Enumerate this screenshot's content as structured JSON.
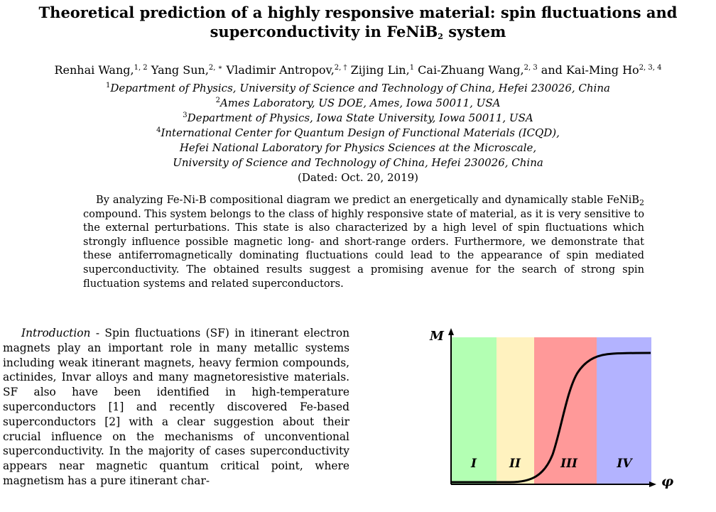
{
  "title": {
    "line1": "Theoretical prediction of a highly responsive material: spin fluctuations and",
    "line2_pre": "superconductivity in FeNiB",
    "line2_sub": "2",
    "line2_post": " system"
  },
  "authors": [
    {
      "name": "Renhai Wang,",
      "sup": "1, 2"
    },
    {
      "name": " Yang Sun,",
      "sup": "2, ∗"
    },
    {
      "name": " Vladimir Antropov,",
      "sup": "2, †"
    },
    {
      "name": " Zijing Lin,",
      "sup": "1"
    },
    {
      "name": " Cai-Zhuang Wang,",
      "sup": "2, 3"
    },
    {
      "name": " and Kai-Ming Ho",
      "sup": "2, 3, 4"
    }
  ],
  "affiliations": [
    {
      "sup": "1",
      "text": "Department of Physics, University of Science and Technology of China, Hefei 230026, China"
    },
    {
      "sup": "2",
      "text": "Ames Laboratory, US DOE, Ames, Iowa 50011, USA"
    },
    {
      "sup": "3",
      "text": "Department of Physics, Iowa State University, Iowa 50011, USA"
    },
    {
      "sup": "4",
      "text": "International Center for Quantum Design of Functional Materials (ICQD),"
    },
    {
      "sup": "",
      "text": "Hefei National Laboratory for Physics Sciences at the Microscale,"
    },
    {
      "sup": "",
      "text": "University of Science and Technology of China, Hefei 230026, China"
    }
  ],
  "dated": "(Dated: Oct. 20, 2019)",
  "abstract": {
    "pre": "By analyzing Fe-Ni-B compositional diagram we predict an energetically and dynamically stable FeNiB",
    "sub": "2",
    "post": " compound. This system belongs to the class of highly responsive state of material, as it is very sensitive to the external perturbations. This state is also characterized by a high level of spin fluctuations which strongly influence possible magnetic long- and short-range orders. Furthermore, we demonstrate that these antiferromagnetically dominating fluctuations could lead to the appearance of spin mediated superconductivity. The obtained results suggest a promising avenue for the search of strong spin fluctuation systems and related superconductors."
  },
  "intro": {
    "heading": "Introduction",
    "text": " - Spin fluctuations (SF) in itinerant electron magnets play an important role in many metallic systems including weak itinerant magnets, heavy fermion compounds, actinides, Invar alloys and many magnetoresistive materials. SF also have been identified in high-temperature superconductors [1] and recently discovered Fe-based superconductors [2] with a clear suggestion about their crucial influence on the mechanisms of unconventional superconductivity. In the majority of cases superconductivity appears near magnetic quantum critical point, where magnetism has a pure itinerant char-"
  },
  "figure": {
    "y_axis_label": "M",
    "x_axis_label": "φ",
    "regions": [
      {
        "label": "I",
        "color": "#b3ffb3"
      },
      {
        "label": "II",
        "color": "#fff2bf"
      },
      {
        "label": "III",
        "color": "#ff9999"
      },
      {
        "label": "IV",
        "color": "#b3b3ff"
      }
    ]
  }
}
